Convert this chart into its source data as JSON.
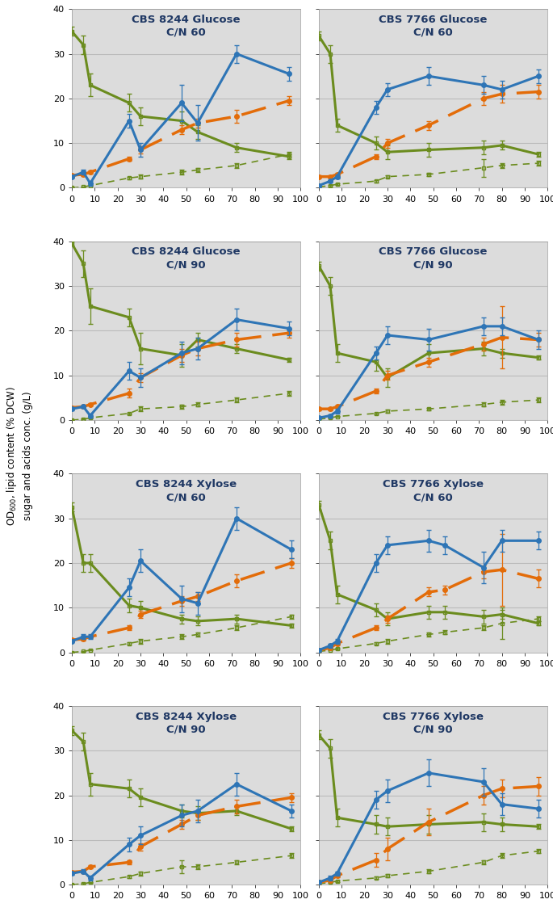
{
  "panels": [
    {
      "title": "CBS 8244 Glucose\nC/N 60",
      "blue_x": [
        0,
        5,
        8,
        25,
        30,
        48,
        55,
        72,
        95
      ],
      "blue_y": [
        2.5,
        3.5,
        1.0,
        15.0,
        8.5,
        19.0,
        14.5,
        30.0,
        25.5
      ],
      "blue_yerr": [
        0.3,
        0.5,
        0.5,
        1.5,
        1.5,
        4.0,
        4.0,
        2.0,
        1.5
      ],
      "orange_x": [
        0,
        5,
        8,
        25,
        30,
        48,
        55,
        72,
        95
      ],
      "orange_y": [
        2.8,
        3.0,
        3.5,
        6.5,
        8.5,
        13.0,
        14.5,
        16.0,
        19.5
      ],
      "orange_yerr": [
        0.2,
        0.3,
        0.3,
        0.5,
        0.8,
        1.0,
        1.0,
        1.5,
        1.0
      ],
      "green_solid_x": [
        0,
        5,
        8,
        25,
        30,
        48,
        55,
        72,
        95
      ],
      "green_solid_y": [
        35.0,
        32.0,
        23.0,
        19.0,
        16.0,
        15.0,
        12.5,
        9.0,
        7.0
      ],
      "green_solid_yerr": [
        1.0,
        2.0,
        2.5,
        2.0,
        2.0,
        2.0,
        1.5,
        1.0,
        0.5
      ],
      "green_dash_x": [
        0,
        5,
        8,
        25,
        30,
        48,
        55,
        72,
        95
      ],
      "green_dash_y": [
        0.0,
        0.2,
        0.5,
        2.2,
        2.5,
        3.5,
        4.0,
        5.0,
        7.5
      ],
      "green_dash_yerr": [
        0.0,
        0.1,
        0.1,
        0.3,
        0.5,
        0.5,
        0.5,
        0.5,
        0.5
      ]
    },
    {
      "title": "CBS 7766 Glucose\nC/N 60",
      "blue_x": [
        0,
        5,
        8,
        25,
        30,
        48,
        72,
        80,
        96
      ],
      "blue_y": [
        0.5,
        1.5,
        2.5,
        18.0,
        22.0,
        25.0,
        23.0,
        22.0,
        25.0
      ],
      "blue_yerr": [
        0.2,
        0.3,
        0.5,
        1.5,
        1.5,
        2.0,
        2.0,
        2.0,
        1.5
      ],
      "orange_x": [
        0,
        5,
        8,
        25,
        30,
        48,
        72,
        80,
        96
      ],
      "orange_y": [
        2.5,
        2.5,
        3.0,
        7.0,
        10.0,
        14.0,
        20.0,
        21.0,
        21.5
      ],
      "orange_yerr": [
        0.3,
        0.3,
        0.3,
        0.5,
        1.0,
        1.0,
        1.5,
        2.0,
        1.5
      ],
      "green_solid_x": [
        0,
        5,
        8,
        25,
        30,
        48,
        72,
        80,
        96
      ],
      "green_solid_y": [
        34.0,
        30.0,
        14.0,
        10.0,
        8.0,
        8.5,
        9.0,
        9.5,
        7.5
      ],
      "green_solid_yerr": [
        1.0,
        2.0,
        1.5,
        1.5,
        1.5,
        1.5,
        1.5,
        1.0,
        0.5
      ],
      "green_dash_x": [
        0,
        5,
        8,
        25,
        30,
        48,
        72,
        80,
        96
      ],
      "green_dash_y": [
        0.2,
        0.5,
        0.8,
        1.5,
        2.5,
        3.0,
        4.5,
        5.0,
        5.5
      ],
      "green_dash_yerr": [
        0.1,
        0.2,
        0.2,
        0.3,
        0.3,
        0.3,
        2.0,
        0.5,
        0.5
      ]
    },
    {
      "title": "CBS 8244 Glucose\nC/N 90",
      "blue_x": [
        0,
        5,
        8,
        25,
        30,
        48,
        55,
        72,
        95
      ],
      "blue_y": [
        2.5,
        3.0,
        1.0,
        11.0,
        9.5,
        15.0,
        16.0,
        22.5,
        20.5
      ],
      "blue_yerr": [
        0.3,
        0.3,
        0.5,
        2.0,
        2.0,
        2.5,
        2.5,
        2.5,
        1.5
      ],
      "orange_x": [
        0,
        5,
        8,
        25,
        30,
        48,
        55,
        72,
        95
      ],
      "orange_y": [
        2.8,
        3.0,
        3.5,
        6.0,
        9.5,
        14.5,
        16.0,
        18.0,
        19.5
      ],
      "orange_yerr": [
        0.2,
        0.2,
        0.3,
        1.0,
        1.0,
        1.5,
        1.5,
        1.5,
        1.0
      ],
      "green_solid_x": [
        0,
        5,
        8,
        25,
        30,
        48,
        55,
        72,
        95
      ],
      "green_solid_y": [
        39.5,
        35.0,
        25.5,
        23.0,
        16.0,
        14.5,
        18.0,
        16.0,
        13.5
      ],
      "green_solid_yerr": [
        0.5,
        3.0,
        4.0,
        2.0,
        3.5,
        2.5,
        1.5,
        1.0,
        0.5
      ],
      "green_dash_x": [
        0,
        5,
        8,
        25,
        30,
        48,
        55,
        72,
        95
      ],
      "green_dash_y": [
        0.0,
        0.2,
        0.5,
        1.5,
        2.5,
        3.0,
        3.5,
        4.5,
        6.0
      ],
      "green_dash_yerr": [
        0.0,
        0.1,
        0.1,
        0.2,
        0.5,
        0.5,
        0.5,
        0.5,
        0.5
      ]
    },
    {
      "title": "CBS 7766 Glucose\nC/N 90",
      "blue_x": [
        0,
        5,
        8,
        25,
        30,
        48,
        72,
        80,
        96
      ],
      "blue_y": [
        0.5,
        1.0,
        2.0,
        15.0,
        19.0,
        18.0,
        21.0,
        21.0,
        18.0
      ],
      "blue_yerr": [
        0.2,
        0.3,
        0.5,
        1.5,
        2.0,
        2.5,
        2.0,
        2.0,
        2.0
      ],
      "orange_x": [
        0,
        5,
        8,
        25,
        30,
        48,
        72,
        80,
        96
      ],
      "orange_y": [
        2.5,
        2.5,
        3.0,
        6.5,
        10.0,
        13.0,
        17.0,
        18.5,
        18.0
      ],
      "orange_yerr": [
        0.3,
        0.3,
        0.3,
        0.5,
        1.0,
        1.0,
        1.5,
        7.0,
        1.5
      ],
      "green_solid_x": [
        0,
        5,
        8,
        25,
        30,
        48,
        72,
        80,
        96
      ],
      "green_solid_y": [
        34.5,
        30.0,
        15.0,
        13.0,
        9.5,
        15.0,
        16.0,
        15.0,
        14.0
      ],
      "green_solid_yerr": [
        1.0,
        2.0,
        2.0,
        2.0,
        2.0,
        2.0,
        1.5,
        1.0,
        0.5
      ],
      "green_dash_x": [
        0,
        5,
        8,
        25,
        30,
        48,
        72,
        80,
        96
      ],
      "green_dash_y": [
        0.2,
        0.5,
        0.8,
        1.5,
        2.0,
        2.5,
        3.5,
        4.0,
        4.5
      ],
      "green_dash_yerr": [
        0.1,
        0.1,
        0.1,
        0.2,
        0.3,
        0.3,
        0.5,
        0.5,
        0.5
      ]
    },
    {
      "title": "CBS 8244 Xylose\nC/N 60",
      "blue_x": [
        0,
        5,
        8,
        25,
        30,
        48,
        55,
        72,
        96
      ],
      "blue_y": [
        2.5,
        3.5,
        3.5,
        14.5,
        20.5,
        12.0,
        11.0,
        30.0,
        23.0
      ],
      "blue_yerr": [
        0.3,
        0.5,
        0.5,
        2.0,
        2.5,
        3.0,
        2.5,
        2.5,
        2.0
      ],
      "orange_x": [
        0,
        5,
        8,
        25,
        30,
        48,
        55,
        72,
        96
      ],
      "orange_y": [
        2.8,
        3.0,
        3.5,
        5.5,
        8.5,
        11.5,
        12.5,
        16.0,
        20.0
      ],
      "orange_yerr": [
        0.2,
        0.3,
        0.3,
        0.5,
        0.8,
        1.0,
        1.0,
        1.5,
        1.0
      ],
      "green_solid_x": [
        0,
        5,
        8,
        25,
        30,
        48,
        55,
        72,
        96
      ],
      "green_solid_y": [
        32.5,
        20.0,
        20.0,
        10.5,
        10.0,
        7.5,
        7.0,
        7.5,
        6.0
      ],
      "green_solid_yerr": [
        1.0,
        2.0,
        2.0,
        1.5,
        1.5,
        1.0,
        1.0,
        1.0,
        0.5
      ],
      "green_dash_x": [
        0,
        5,
        8,
        25,
        30,
        48,
        55,
        72,
        96
      ],
      "green_dash_y": [
        0.0,
        0.2,
        0.5,
        2.0,
        2.5,
        3.5,
        4.0,
        5.5,
        8.0
      ],
      "green_dash_yerr": [
        0.0,
        0.1,
        0.1,
        0.3,
        0.5,
        0.5,
        0.5,
        0.5,
        0.5
      ]
    },
    {
      "title": "CBS 7766 Xylose\nC/N 60",
      "blue_x": [
        0,
        5,
        8,
        25,
        30,
        48,
        55,
        72,
        80,
        96
      ],
      "blue_y": [
        0.5,
        1.5,
        2.5,
        20.0,
        24.0,
        25.0,
        24.0,
        19.0,
        25.0,
        25.0
      ],
      "blue_yerr": [
        0.2,
        0.5,
        0.5,
        2.0,
        2.0,
        2.5,
        2.0,
        3.5,
        2.5,
        2.0
      ],
      "orange_x": [
        0,
        5,
        8,
        25,
        30,
        48,
        55,
        72,
        80,
        96
      ],
      "orange_y": [
        0.5,
        1.0,
        2.0,
        5.5,
        7.5,
        13.5,
        14.0,
        18.0,
        18.5,
        16.5
      ],
      "orange_yerr": [
        0.1,
        0.2,
        0.3,
        0.5,
        0.8,
        1.0,
        1.0,
        1.5,
        8.0,
        2.0
      ],
      "green_solid_x": [
        0,
        5,
        8,
        25,
        30,
        48,
        55,
        72,
        80,
        96
      ],
      "green_solid_y": [
        33.0,
        25.0,
        13.0,
        9.5,
        7.5,
        9.0,
        9.0,
        8.0,
        8.5,
        6.5
      ],
      "green_solid_yerr": [
        1.0,
        2.0,
        2.0,
        1.5,
        1.5,
        1.5,
        1.5,
        1.5,
        1.0,
        0.5
      ],
      "green_dash_x": [
        0,
        5,
        8,
        25,
        30,
        48,
        55,
        72,
        80,
        96
      ],
      "green_dash_y": [
        0.2,
        0.5,
        0.8,
        2.0,
        2.5,
        4.0,
        4.5,
        5.5,
        6.5,
        7.5
      ],
      "green_dash_yerr": [
        0.1,
        0.1,
        0.2,
        0.3,
        0.5,
        0.5,
        0.5,
        0.5,
        3.5,
        0.5
      ]
    },
    {
      "title": "CBS 8244 Xylose\nC/N 90",
      "blue_x": [
        0,
        5,
        8,
        25,
        30,
        48,
        55,
        72,
        96
      ],
      "blue_y": [
        2.5,
        3.0,
        1.5,
        9.0,
        11.0,
        15.5,
        16.5,
        22.5,
        16.5
      ],
      "blue_yerr": [
        0.3,
        0.4,
        0.5,
        1.5,
        2.0,
        2.5,
        2.5,
        2.5,
        1.5
      ],
      "orange_x": [
        0,
        5,
        8,
        25,
        30,
        48,
        55,
        72,
        96
      ],
      "orange_y": [
        2.8,
        3.0,
        4.0,
        5.0,
        8.5,
        13.5,
        15.5,
        17.5,
        19.5
      ],
      "orange_yerr": [
        0.2,
        0.3,
        0.3,
        0.5,
        0.8,
        1.0,
        1.0,
        1.5,
        1.0
      ],
      "green_solid_x": [
        0,
        5,
        8,
        25,
        30,
        48,
        55,
        72,
        96
      ],
      "green_solid_y": [
        34.5,
        32.0,
        22.5,
        21.5,
        19.5,
        16.5,
        16.0,
        16.5,
        12.5
      ],
      "green_solid_yerr": [
        1.0,
        2.0,
        2.5,
        2.0,
        2.0,
        1.5,
        1.5,
        1.0,
        0.5
      ],
      "green_dash_x": [
        0,
        5,
        8,
        25,
        30,
        48,
        55,
        72,
        96
      ],
      "green_dash_y": [
        0.0,
        0.2,
        0.5,
        1.8,
        2.5,
        4.0,
        4.0,
        5.0,
        6.5
      ],
      "green_dash_yerr": [
        0.0,
        0.1,
        0.1,
        0.3,
        0.5,
        1.5,
        0.5,
        0.5,
        0.5
      ]
    },
    {
      "title": "CBS 7766 Xylose\nC/N 90",
      "blue_x": [
        0,
        5,
        8,
        25,
        30,
        48,
        72,
        80,
        96
      ],
      "blue_y": [
        0.5,
        1.5,
        2.5,
        19.0,
        21.0,
        25.0,
        23.0,
        18.0,
        17.0
      ],
      "blue_yerr": [
        0.2,
        0.5,
        0.5,
        2.0,
        2.5,
        3.0,
        3.0,
        2.5,
        2.0
      ],
      "orange_x": [
        0,
        5,
        8,
        25,
        30,
        48,
        72,
        80,
        96
      ],
      "orange_y": [
        0.5,
        1.0,
        2.0,
        5.5,
        8.0,
        14.0,
        20.0,
        21.5,
        22.0
      ],
      "orange_yerr": [
        0.1,
        0.2,
        0.3,
        1.5,
        2.5,
        3.0,
        2.0,
        2.0,
        2.0
      ],
      "green_solid_x": [
        0,
        5,
        8,
        25,
        30,
        48,
        72,
        80,
        96
      ],
      "green_solid_y": [
        33.5,
        30.5,
        15.0,
        13.5,
        13.0,
        13.5,
        14.0,
        13.5,
        13.0
      ],
      "green_solid_yerr": [
        1.0,
        2.0,
        2.0,
        2.0,
        2.0,
        2.0,
        2.0,
        1.5,
        0.5
      ],
      "green_dash_x": [
        0,
        5,
        8,
        25,
        30,
        48,
        72,
        80,
        96
      ],
      "green_dash_y": [
        0.2,
        0.5,
        0.8,
        1.5,
        2.0,
        3.0,
        5.0,
        6.5,
        7.5
      ],
      "green_dash_yerr": [
        0.1,
        0.1,
        0.2,
        0.3,
        0.3,
        0.5,
        0.5,
        0.5,
        0.5
      ]
    }
  ],
  "blue_color": "#2E75B6",
  "orange_color": "#E36C09",
  "green_color": "#6B8C1E",
  "title_color": "#1F3864",
  "bg_color": "#DCDCDC",
  "ylim": [
    0,
    40
  ],
  "xlim": [
    0,
    100
  ],
  "xticks": [
    0,
    10,
    20,
    30,
    40,
    50,
    60,
    70,
    80,
    90,
    100
  ],
  "yticks": [
    0,
    10,
    20,
    30,
    40
  ],
  "ylabel": "OD$_{600}$, lipid content (% DCW)\nsugar and acids conc. (g/L)",
  "grid_color": "#BBBBBB"
}
